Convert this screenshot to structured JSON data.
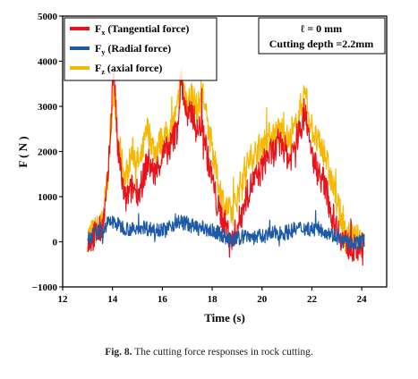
{
  "chart_data": {
    "type": "line",
    "xlabel": "Time (s)",
    "ylabel": "F ( N )",
    "xlim": [
      12,
      25
    ],
    "ylim": [
      -1000,
      5000
    ],
    "x_ticks": [
      "12",
      "14",
      "16",
      "18",
      "20",
      "22",
      "24"
    ],
    "y_ticks": [
      "−1000",
      "0",
      "1000",
      "2000",
      "3000",
      "4000",
      "5000"
    ],
    "grid": false,
    "legend_position": "top-left",
    "legend": [
      {
        "main": "F",
        "sub": "x",
        "text": " (Tangential force)",
        "color": "#e8141b"
      },
      {
        "main": "F",
        "sub": "y",
        "text": " (Radial force)",
        "color": "#1c5aa8"
      },
      {
        "main": "F",
        "sub": "z",
        "text": " (axial force)",
        "color": "#f6b800"
      }
    ],
    "annotation_lines": [
      "ℓ = 0 mm",
      "Cutting depth =2.2mm"
    ],
    "series": [
      {
        "key": "Fz",
        "color": "#f6b800",
        "x": [
          13.0,
          13.3,
          13.6,
          13.8,
          13.95,
          14.05,
          14.2,
          14.5,
          14.8,
          15.1,
          15.4,
          15.7,
          16.0,
          16.3,
          16.6,
          16.75,
          17.0,
          17.2,
          17.4,
          17.6,
          17.8,
          18.0,
          18.2,
          18.5,
          18.8,
          19.0,
          19.3,
          19.6,
          19.9,
          20.2,
          20.5,
          20.8,
          21.1,
          21.4,
          21.6,
          21.75,
          21.9,
          22.2,
          22.5,
          22.8,
          23.1,
          23.3,
          23.5,
          23.8,
          24.1
        ],
        "values": [
          100,
          250,
          400,
          1400,
          2700,
          3500,
          2300,
          1400,
          2000,
          1700,
          2500,
          2000,
          2300,
          2400,
          2900,
          3750,
          3100,
          3300,
          2900,
          3400,
          2600,
          2100,
          1400,
          800,
          600,
          1000,
          1600,
          1900,
          2100,
          2300,
          2400,
          2500,
          2200,
          2600,
          3100,
          3350,
          2700,
          2200,
          2000,
          1300,
          700,
          200,
          100,
          50,
          100
        ]
      },
      {
        "key": "Fx",
        "color": "#e8141b",
        "x": [
          13.0,
          13.3,
          13.6,
          13.8,
          13.95,
          14.05,
          14.2,
          14.5,
          14.8,
          15.1,
          15.4,
          15.7,
          16.0,
          16.3,
          16.6,
          16.75,
          17.0,
          17.2,
          17.4,
          17.6,
          17.8,
          18.0,
          18.2,
          18.5,
          18.8,
          19.0,
          19.3,
          19.6,
          19.9,
          20.2,
          20.5,
          20.8,
          21.1,
          21.4,
          21.6,
          21.75,
          21.9,
          22.2,
          22.5,
          22.8,
          23.1,
          23.3,
          23.5,
          23.8,
          24.1
        ],
        "values": [
          0,
          150,
          300,
          1200,
          2800,
          4000,
          2100,
          900,
          1200,
          1100,
          1800,
          1500,
          1900,
          2100,
          2500,
          3600,
          2700,
          2900,
          2400,
          2700,
          1900,
          1400,
          800,
          400,
          0,
          300,
          900,
          1300,
          1500,
          1900,
          2000,
          2200,
          1800,
          2300,
          2600,
          3000,
          2100,
          1600,
          1300,
          600,
          200,
          0,
          -100,
          -200,
          -150
        ]
      },
      {
        "key": "Fy",
        "color": "#1c5aa8",
        "x": [
          13.0,
          13.3,
          13.6,
          13.8,
          14.0,
          14.3,
          14.6,
          14.9,
          15.2,
          15.5,
          15.8,
          16.1,
          16.4,
          16.7,
          17.0,
          17.3,
          17.6,
          17.9,
          18.2,
          18.5,
          18.8,
          19.1,
          19.4,
          19.7,
          20.0,
          20.3,
          20.6,
          20.9,
          21.2,
          21.5,
          21.8,
          22.1,
          22.4,
          22.7,
          23.0,
          23.3,
          23.6,
          23.9,
          24.1
        ],
        "values": [
          100,
          180,
          250,
          400,
          450,
          350,
          300,
          250,
          350,
          280,
          300,
          250,
          380,
          450,
          400,
          320,
          300,
          250,
          200,
          120,
          0,
          100,
          150,
          100,
          120,
          160,
          200,
          200,
          250,
          300,
          300,
          280,
          280,
          200,
          100,
          0,
          -50,
          0,
          50
        ]
      }
    ]
  },
  "caption": {
    "label": "Fig. 8.",
    "text": "The cutting force responses in rock cutting."
  }
}
